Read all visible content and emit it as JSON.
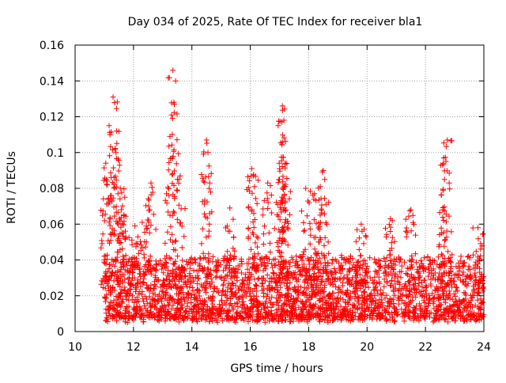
{
  "chart_data": {
    "type": "scatter",
    "title": "Day 034 of 2025, Rate Of TEC Index for receiver bla1",
    "xlabel": "GPS time / hours",
    "ylabel": "ROTI / TECUs",
    "xlim": [
      10,
      24
    ],
    "ylim": [
      0,
      0.16
    ],
    "x_ticks": [
      "10",
      "12",
      "14",
      "16",
      "18",
      "20",
      "22",
      "24"
    ],
    "y_ticks": [
      "0",
      "0.02",
      "0.04",
      "0.06",
      "0.08",
      "0.1",
      "0.12",
      "0.14",
      "0.16"
    ],
    "grid": true,
    "marker": "+",
    "series": [
      {
        "name": "ROTI",
        "color": "#ff0000",
        "time_range_hours": [
          11.0,
          24.0
        ],
        "typical_range": [
          0.005,
          0.04
        ],
        "peaks": [
          {
            "x": 11.05,
            "y": 0.094
          },
          {
            "x": 11.1,
            "y": 0.084
          },
          {
            "x": 11.3,
            "y": 0.131
          },
          {
            "x": 11.35,
            "y": 0.128
          },
          {
            "x": 11.4,
            "y": 0.1
          },
          {
            "x": 11.55,
            "y": 0.08
          },
          {
            "x": 11.7,
            "y": 0.075
          },
          {
            "x": 12.05,
            "y": 0.059
          },
          {
            "x": 12.3,
            "y": 0.061
          },
          {
            "x": 12.6,
            "y": 0.083
          },
          {
            "x": 13.25,
            "y": 0.109
          },
          {
            "x": 13.35,
            "y": 0.146
          },
          {
            "x": 13.4,
            "y": 0.127
          },
          {
            "x": 13.6,
            "y": 0.087
          },
          {
            "x": 14.5,
            "y": 0.107
          },
          {
            "x": 14.55,
            "y": 0.1
          },
          {
            "x": 15.3,
            "y": 0.069
          },
          {
            "x": 16.05,
            "y": 0.091
          },
          {
            "x": 16.1,
            "y": 0.087
          },
          {
            "x": 16.6,
            "y": 0.083
          },
          {
            "x": 17.0,
            "y": 0.085
          },
          {
            "x": 17.1,
            "y": 0.126
          },
          {
            "x": 17.15,
            "y": 0.118
          },
          {
            "x": 17.1,
            "y": 0.106
          },
          {
            "x": 17.2,
            "y": 0.081
          },
          {
            "x": 17.9,
            "y": 0.08
          },
          {
            "x": 18.2,
            "y": 0.077
          },
          {
            "x": 18.5,
            "y": 0.09
          },
          {
            "x": 18.55,
            "y": 0.085
          },
          {
            "x": 19.8,
            "y": 0.06
          },
          {
            "x": 20.8,
            "y": 0.063
          },
          {
            "x": 21.5,
            "y": 0.068
          },
          {
            "x": 22.6,
            "y": 0.068
          },
          {
            "x": 22.75,
            "y": 0.107
          },
          {
            "x": 22.7,
            "y": 0.095
          },
          {
            "x": 23.8,
            "y": 0.058
          }
        ]
      }
    ]
  }
}
